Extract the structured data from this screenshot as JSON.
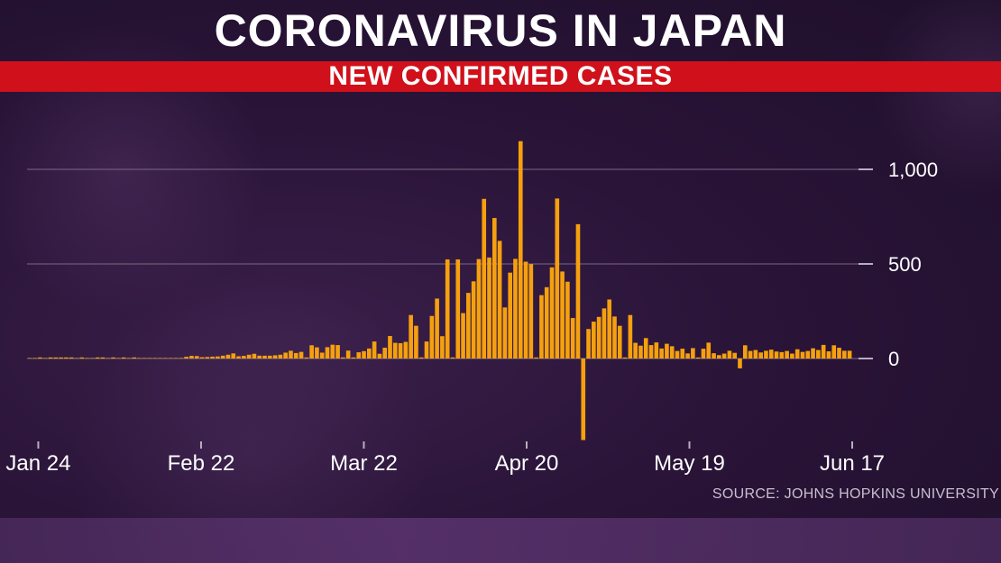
{
  "title": "CORONAVIRUS IN JAPAN",
  "subtitle": "NEW CONFIRMED CASES",
  "source": "SOURCE: JOHNS HOPKINS UNIVERSITY",
  "colors": {
    "bar": "#f5a00f",
    "subtitle_band": "#d0101a",
    "grid": "#7a6a86",
    "text": "#ffffff"
  },
  "chart_data": {
    "type": "bar",
    "x_start": "2020-01-22",
    "x_end": "2020-06-17",
    "xticks": [
      "Jan 24",
      "Feb 22",
      "Mar 22",
      "Apr 20",
      "May 19",
      "Jun 17"
    ],
    "yticks": [
      0,
      500,
      1000
    ],
    "ytick_labels": [
      "0",
      "500",
      "1,000"
    ],
    "ylim": [
      -420,
      1180
    ],
    "grid": true,
    "values": [
      0,
      0,
      2,
      0,
      1,
      1,
      3,
      4,
      3,
      0,
      1,
      0,
      0,
      2,
      2,
      0,
      3,
      0,
      1,
      0,
      2,
      0,
      0,
      0,
      0,
      0,
      0,
      0,
      0,
      0,
      9,
      14,
      13,
      7,
      8,
      10,
      11,
      15,
      20,
      27,
      12,
      14,
      20,
      25,
      15,
      15,
      15,
      17,
      20,
      31,
      41,
      29,
      35,
      5,
      70,
      59,
      31,
      60,
      73,
      71,
      5,
      42,
      2,
      33,
      39,
      53,
      90,
      25,
      57,
      119,
      83,
      81,
      88,
      230,
      173,
      5,
      90,
      225,
      317,
      118,
      524,
      4,
      524,
      240,
      347,
      408,
      526,
      844,
      534,
      743,
      622,
      270,
      454,
      527,
      1149,
      512,
      499,
      4,
      335,
      377,
      482,
      846,
      460,
      406,
      214,
      710,
      -431,
      156,
      195,
      220,
      265,
      312,
      222,
      173,
      5,
      230,
      83,
      68,
      108,
      71,
      85,
      53,
      78,
      65,
      40,
      52,
      27,
      55,
      5,
      52,
      84,
      28,
      18,
      26,
      41,
      30,
      -52,
      70,
      40,
      45,
      32,
      41,
      47,
      37,
      34,
      40,
      26,
      49,
      35,
      40,
      54,
      45,
      72,
      38,
      70,
      57,
      41,
      41
    ]
  }
}
